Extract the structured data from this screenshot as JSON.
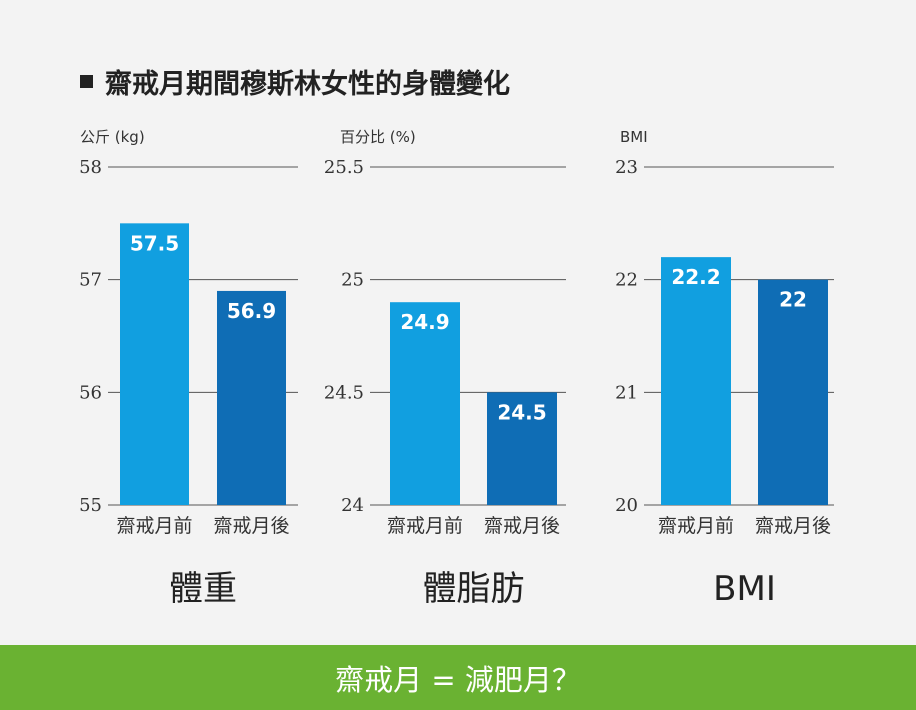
{
  "heading": "齋戒月期間穆斯林女性的身體變化",
  "footer": "齋戒月 = 減肥月？",
  "colors": {
    "before": "#119fe0",
    "after": "#0f6db5",
    "footer": "#6ab232",
    "grid": "#555555"
  },
  "chart_data": [
    {
      "type": "bar",
      "title": "體重",
      "unit_label": "公斤 (kg)",
      "categories": [
        "齋戒月前",
        "齋戒月後"
      ],
      "values": [
        57.5,
        56.9
      ],
      "value_labels": [
        "57.5",
        "56.9"
      ],
      "ylim": [
        55,
        58
      ],
      "yticks": [
        55,
        56,
        57,
        58
      ],
      "ytick_labels": [
        "55",
        "56",
        "57",
        "58"
      ]
    },
    {
      "type": "bar",
      "title": "體脂肪",
      "unit_label": "百分比 (%)",
      "categories": [
        "齋戒月前",
        "齋戒月後"
      ],
      "values": [
        24.9,
        24.5
      ],
      "value_labels": [
        "24.9",
        "24.5"
      ],
      "ylim": [
        24,
        25.5
      ],
      "yticks": [
        24,
        24.5,
        25,
        25.5
      ],
      "ytick_labels": [
        "24",
        "24.5",
        "25",
        "25.5"
      ]
    },
    {
      "type": "bar",
      "title": "BMI",
      "unit_label": "BMI",
      "categories": [
        "齋戒月前",
        "齋戒月後"
      ],
      "values": [
        22.2,
        22
      ],
      "value_labels": [
        "22.2",
        "22"
      ],
      "ylim": [
        20,
        23
      ],
      "yticks": [
        20,
        21,
        22,
        23
      ],
      "ytick_labels": [
        "20",
        "21",
        "22",
        "23"
      ]
    }
  ]
}
